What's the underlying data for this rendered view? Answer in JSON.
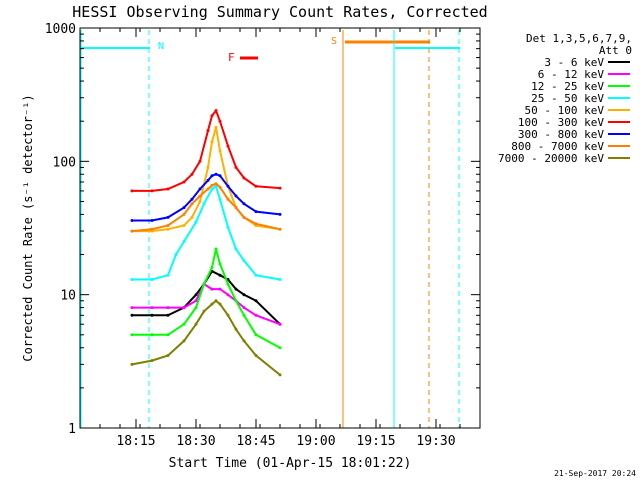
{
  "chart_data": {
    "type": "line",
    "title": "HESSI Observing Summary Count Rates, Corrected",
    "xlabel": "Start Time (01-Apr-15 18:01:22)",
    "ylabel": "Corrected Count Rate (s⁻¹ detector⁻¹)",
    "y_scale": "log",
    "ylim": [
      1,
      1000
    ],
    "xlim_minutes_after_1801": [
      0,
      41
    ],
    "y_ticks": [
      "1",
      "10",
      "100",
      "1000"
    ],
    "x_ticks": [
      "18:15",
      "18:30",
      "18:45",
      "19:00",
      "19:15",
      "19:30"
    ],
    "x_tick_minutes": [
      14,
      29,
      44,
      59,
      74,
      89
    ],
    "legend_header": [
      "Det 1,3,5,6,7,9,",
      "Att 0"
    ],
    "legend_position": "right",
    "annotations": {
      "N": "N",
      "S": "S",
      "F": "F"
    },
    "footer_date": "21-Sep-2017 20:24",
    "series": [
      {
        "name": "3 - 6 keV",
        "color": "#000000",
        "points": [
          [
            13,
            7
          ],
          [
            18,
            7
          ],
          [
            22,
            7
          ],
          [
            26,
            8
          ],
          [
            29,
            10
          ],
          [
            31,
            12
          ],
          [
            33,
            15
          ],
          [
            35,
            14
          ],
          [
            37,
            13
          ],
          [
            39,
            11
          ],
          [
            41,
            10
          ],
          [
            44,
            9
          ],
          [
            50,
            6
          ]
        ]
      },
      {
        "name": "6 - 12 keV",
        "color": "#ff00ff",
        "points": [
          [
            13,
            8
          ],
          [
            18,
            8
          ],
          [
            22,
            8
          ],
          [
            26,
            8
          ],
          [
            29,
            9
          ],
          [
            31,
            12
          ],
          [
            33,
            11
          ],
          [
            35,
            11
          ],
          [
            37,
            10
          ],
          [
            39,
            9
          ],
          [
            41,
            8
          ],
          [
            44,
            7
          ],
          [
            50,
            6
          ]
        ]
      },
      {
        "name": "12 - 25 keV",
        "color": "#00ff00",
        "points": [
          [
            13,
            5
          ],
          [
            18,
            5
          ],
          [
            22,
            5
          ],
          [
            26,
            6
          ],
          [
            29,
            8
          ],
          [
            31,
            12
          ],
          [
            33,
            16
          ],
          [
            34,
            22
          ],
          [
            35,
            17
          ],
          [
            37,
            12
          ],
          [
            39,
            9
          ],
          [
            41,
            7
          ],
          [
            44,
            5
          ],
          [
            50,
            4
          ]
        ]
      },
      {
        "name": "25 - 50 keV",
        "color": "#00ffff",
        "points": [
          [
            13,
            13
          ],
          [
            18,
            13
          ],
          [
            22,
            14
          ],
          [
            24,
            20
          ],
          [
            26,
            25
          ],
          [
            29,
            35
          ],
          [
            31,
            48
          ],
          [
            33,
            62
          ],
          [
            34,
            65
          ],
          [
            35,
            52
          ],
          [
            37,
            32
          ],
          [
            39,
            22
          ],
          [
            41,
            18
          ],
          [
            44,
            14
          ],
          [
            50,
            13
          ]
        ]
      },
      {
        "name": "50 - 100 keV",
        "color": "#ffb000",
        "points": [
          [
            13,
            30
          ],
          [
            18,
            30
          ],
          [
            22,
            31
          ],
          [
            26,
            33
          ],
          [
            28,
            38
          ],
          [
            30,
            50
          ],
          [
            32,
            90
          ],
          [
            33,
            140
          ],
          [
            34,
            180
          ],
          [
            35,
            120
          ],
          [
            37,
            65
          ],
          [
            39,
            45
          ],
          [
            41,
            38
          ],
          [
            44,
            33
          ],
          [
            50,
            31
          ]
        ]
      },
      {
        "name": "100 - 300 keV",
        "color": "#ff0000",
        "points": [
          [
            13,
            60
          ],
          [
            18,
            60
          ],
          [
            22,
            62
          ],
          [
            26,
            70
          ],
          [
            28,
            80
          ],
          [
            30,
            100
          ],
          [
            32,
            170
          ],
          [
            33,
            220
          ],
          [
            34,
            240
          ],
          [
            35,
            200
          ],
          [
            37,
            130
          ],
          [
            39,
            90
          ],
          [
            41,
            75
          ],
          [
            44,
            65
          ],
          [
            50,
            63
          ]
        ]
      },
      {
        "name": "300 - 800 keV",
        "color": "#0000ff",
        "points": [
          [
            13,
            36
          ],
          [
            18,
            36
          ],
          [
            22,
            38
          ],
          [
            26,
            45
          ],
          [
            28,
            52
          ],
          [
            30,
            62
          ],
          [
            32,
            72
          ],
          [
            33,
            78
          ],
          [
            34,
            80
          ],
          [
            35,
            78
          ],
          [
            37,
            65
          ],
          [
            39,
            55
          ],
          [
            41,
            48
          ],
          [
            44,
            42
          ],
          [
            50,
            40
          ]
        ]
      },
      {
        "name": "800 - 7000 keV",
        "color": "#ff8000",
        "points": [
          [
            13,
            30
          ],
          [
            18,
            31
          ],
          [
            22,
            33
          ],
          [
            26,
            40
          ],
          [
            28,
            48
          ],
          [
            30,
            55
          ],
          [
            32,
            62
          ],
          [
            33,
            66
          ],
          [
            34,
            68
          ],
          [
            35,
            64
          ],
          [
            37,
            52
          ],
          [
            39,
            45
          ],
          [
            41,
            38
          ],
          [
            44,
            34
          ],
          [
            50,
            31
          ]
        ]
      },
      {
        "name": "7000 - 20000 keV",
        "color": "#808000",
        "points": [
          [
            13,
            3
          ],
          [
            18,
            3.2
          ],
          [
            22,
            3.5
          ],
          [
            26,
            4.5
          ],
          [
            29,
            6
          ],
          [
            31,
            7.5
          ],
          [
            33,
            8.5
          ],
          [
            34,
            9
          ],
          [
            35,
            8.5
          ],
          [
            37,
            7
          ],
          [
            39,
            5.5
          ],
          [
            41,
            4.5
          ],
          [
            44,
            3.5
          ],
          [
            50,
            2.5
          ]
        ]
      }
    ]
  }
}
